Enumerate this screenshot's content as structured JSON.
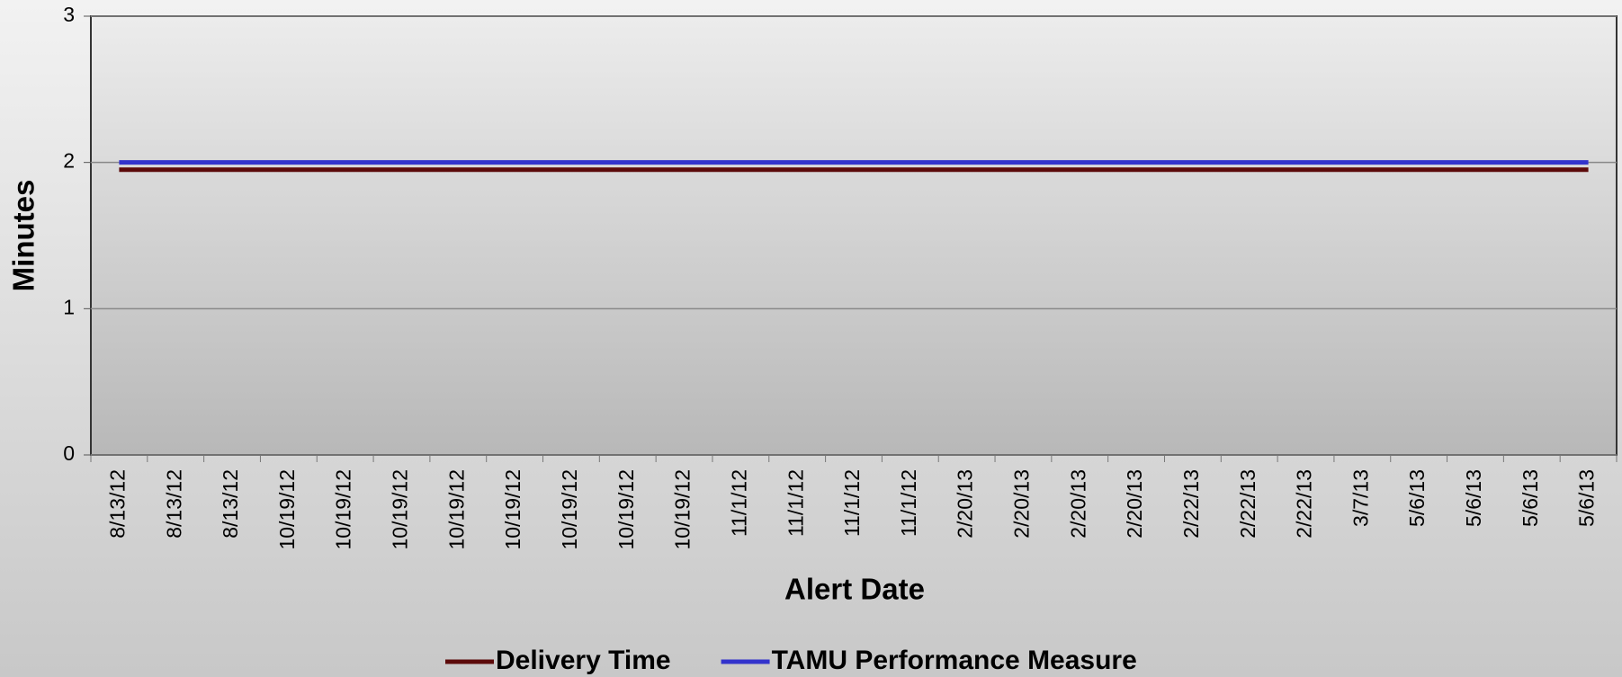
{
  "chart_data": {
    "type": "line",
    "x_label": "Alert Date",
    "y_label": "Minutes",
    "categories": [
      "8/13/12",
      "8/13/12",
      "8/13/12",
      "10/19/12",
      "10/19/12",
      "10/19/12",
      "10/19/12",
      "10/19/12",
      "10/19/12",
      "10/19/12",
      "10/19/12",
      "11/1/12",
      "11/1/12",
      "11/1/12",
      "11/1/12",
      "2/20/13",
      "2/20/13",
      "2/20/13",
      "2/20/13",
      "2/22/13",
      "2/22/13",
      "2/22/13",
      "3/7/13",
      "5/6/13",
      "5/6/13",
      "5/6/13",
      "5/6/13"
    ],
    "series": [
      {
        "name": "Delivery Time",
        "color": "#5c0a0a",
        "values": [
          1.95,
          1.95,
          1.95,
          1.95,
          1.95,
          1.95,
          1.95,
          1.95,
          1.95,
          1.95,
          1.95,
          1.95,
          1.95,
          1.95,
          1.95,
          1.95,
          1.95,
          1.95,
          1.95,
          1.95,
          1.95,
          1.95,
          1.95,
          1.95,
          1.95,
          1.95,
          1.95
        ]
      },
      {
        "name": "TAMU Performance Measure",
        "color": "#3333cc",
        "values": [
          2,
          2,
          2,
          2,
          2,
          2,
          2,
          2,
          2,
          2,
          2,
          2,
          2,
          2,
          2,
          2,
          2,
          2,
          2,
          2,
          2,
          2,
          2,
          2,
          2,
          2,
          2
        ]
      }
    ],
    "ylim": [
      0,
      3
    ],
    "yticks": [
      0,
      1,
      2,
      3
    ],
    "grid": true,
    "legend": "bottom"
  }
}
